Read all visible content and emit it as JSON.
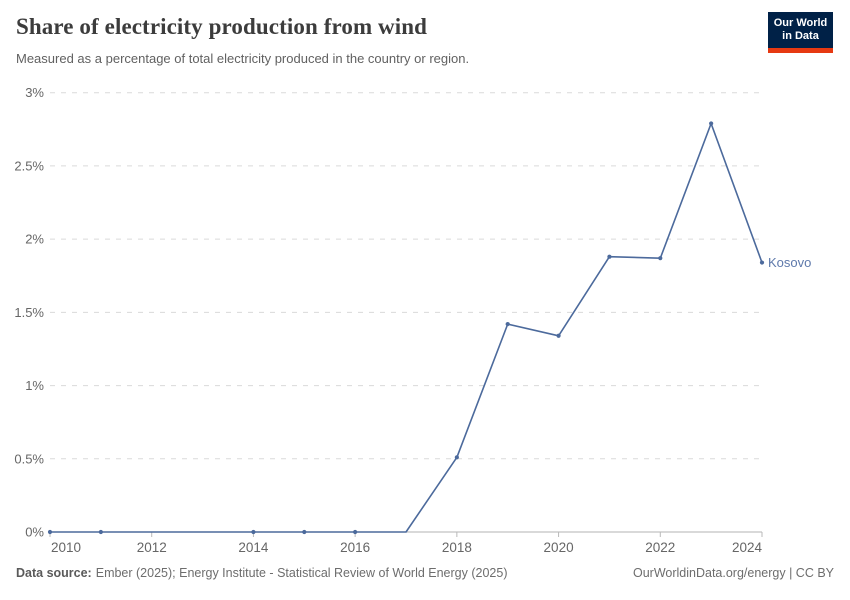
{
  "header": {
    "title": "Share of electricity production from wind",
    "subtitle": "Measured as a percentage of total electricity produced in the country or region.",
    "logo": {
      "line1": "Our World",
      "line2": "in Data",
      "bg_color": "#002147",
      "stripe_color": "#E63912"
    }
  },
  "chart_data": {
    "type": "line",
    "title": "Share of electricity production from wind",
    "xlabel": "",
    "ylabel": "",
    "xlim": [
      2010,
      2024
    ],
    "ylim": [
      0,
      3
    ],
    "grid": "horizontal-dashed",
    "legend_position": "end-of-line-label",
    "x_ticks": [
      2010,
      2012,
      2014,
      2016,
      2018,
      2020,
      2022,
      2024
    ],
    "x_tick_labels": [
      "2010",
      "2012",
      "2014",
      "2016",
      "2018",
      "2020",
      "2022",
      "2024"
    ],
    "y_ticks": [
      0,
      0.5,
      1,
      1.5,
      2,
      2.5,
      3
    ],
    "y_tick_labels": [
      "0%",
      "0.5%",
      "1%",
      "1.5%",
      "2%",
      "2.5%",
      "3%"
    ],
    "series": [
      {
        "name": "Kosovo",
        "color": "#4c6a9c",
        "label_color": "#5e79ab",
        "x": [
          2010,
          2011,
          2012,
          2013,
          2014,
          2015,
          2016,
          2017,
          2018,
          2019,
          2020,
          2021,
          2022,
          2023,
          2024
        ],
        "values": [
          0,
          0,
          0,
          0,
          0,
          0,
          0,
          0,
          0.51,
          1.42,
          1.34,
          1.88,
          1.87,
          2.79,
          1.84
        ],
        "marker_years": [
          2010,
          2011,
          2014,
          2015,
          2016,
          2018,
          2019,
          2020,
          2021,
          2022,
          2023,
          2024
        ]
      }
    ]
  },
  "footer": {
    "data_source_label": "Data source:",
    "data_source_text": "Ember (2025); Energy Institute - Statistical Review of World Energy (2025)",
    "attribution": "OurWorldinData.org/energy | CC BY"
  }
}
